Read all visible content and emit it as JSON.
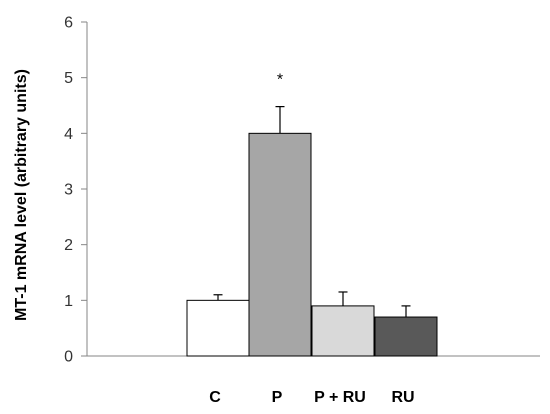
{
  "chart_data": {
    "type": "bar",
    "categories": [
      "C",
      "P",
      "P + RU",
      "RU"
    ],
    "values": [
      1.0,
      4.0,
      0.9,
      0.7
    ],
    "error_plus": [
      0.1,
      0.48,
      0.25,
      0.2
    ],
    "bar_colors": [
      "#ffffff",
      "#a6a6a6",
      "#d9d9d9",
      "#595959"
    ],
    "ylabel": "MT-1 mRNA level (arbitrary units)",
    "xlabel": "",
    "ylim": [
      0,
      6
    ],
    "yticks": [
      "0",
      "1",
      "2",
      "3",
      "4",
      "5",
      "6"
    ],
    "annotations": [
      {
        "category": "P",
        "text": "*"
      }
    ],
    "grid": false,
    "legend": "none"
  }
}
